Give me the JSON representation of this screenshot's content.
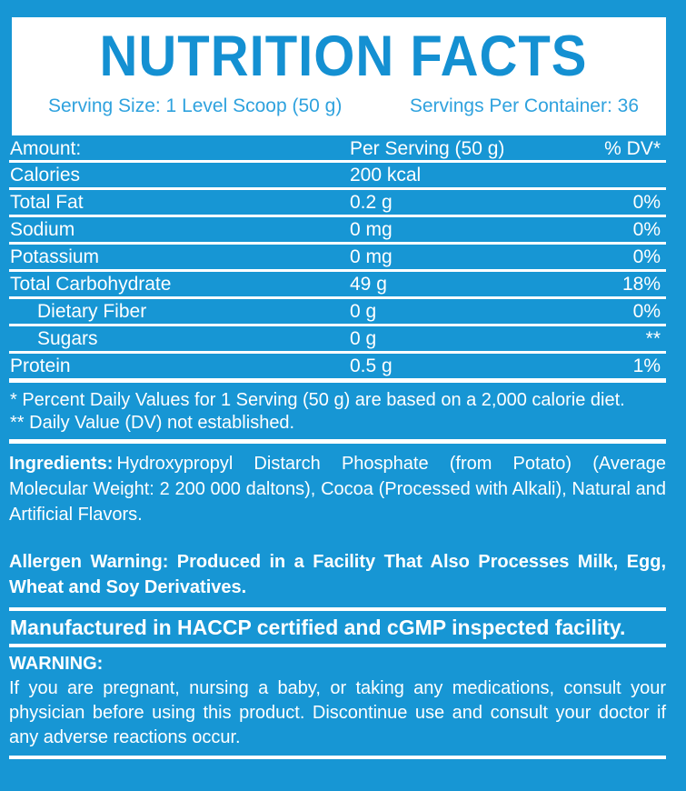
{
  "colors": {
    "background": "#1796d4",
    "panel": "#ffffff",
    "title_text": "#1490d2",
    "serving_text": "#2fa2de",
    "body_text": "#ffffff",
    "rule": "#ffffff"
  },
  "header": {
    "title": "NUTRITION FACTS",
    "serving_size": "Serving Size: 1 Level Scoop (50 g)",
    "servings_per_container": "Servings Per Container: 36"
  },
  "table": {
    "columns": [
      "Amount:",
      "Per Serving (50 g)",
      "% DV*"
    ],
    "rows": [
      {
        "name": "Calories",
        "amount": "200 kcal",
        "dv": ""
      },
      {
        "name": "Total Fat",
        "amount": "0.2 g",
        "dv": "0%"
      },
      {
        "name": "Sodium",
        "amount": "0 mg",
        "dv": "0%"
      },
      {
        "name": "Potassium",
        "amount": "0 mg",
        "dv": "0%"
      },
      {
        "name": "Total Carbohydrate",
        "amount": "49 g",
        "dv": "18%"
      },
      {
        "name": "Dietary Fiber",
        "amount": "0 g",
        "dv": "0%"
      },
      {
        "name": "Sugars",
        "amount": "0 g",
        "dv": "**"
      },
      {
        "name": "Protein",
        "amount": "0.5 g",
        "dv": "1%"
      }
    ]
  },
  "footnotes": {
    "line1": "* Percent Daily Values for 1 Serving (50 g) are based on a 2,000 calorie diet.",
    "line2": "** Daily Value (DV) not established."
  },
  "ingredients": {
    "label": "Ingredients:",
    "text": "Hydroxypropyl Distarch Phosphate (from Potato) (Average Molecular Weight: 2 200 000 daltons), Cocoa (Processed with Alkali), Natural and Artificial Flavors."
  },
  "allergen_warning": "Allergen Warning: Produced in a Facility That Also Processes Milk, Egg, Wheat and Soy Derivatives.",
  "manufactured": "Manufactured in HACCP certified and cGMP inspected facility.",
  "warning": {
    "label": "WARNING:",
    "text": "If you are pregnant, nursing a baby, or taking any medications, consult your physician before using this product. Discontinue use and consult your doctor if any adverse reactions occur."
  }
}
